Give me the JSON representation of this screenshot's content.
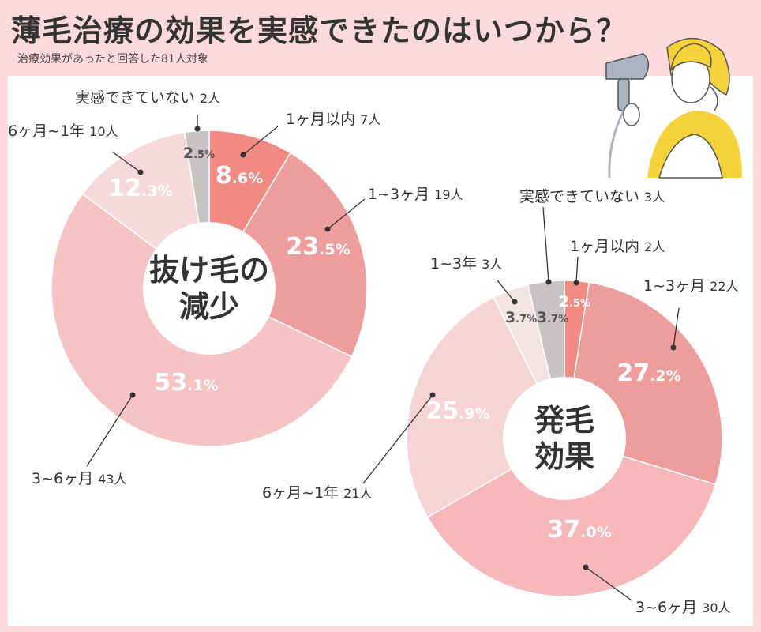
{
  "title": "薄毛治療の効果を実感できたのはいつから？",
  "subtitle": "治療効果があったと回答した81人対象",
  "colors": {
    "background": "#fcd9dc",
    "slices": [
      "#f28a84",
      "#ee9d9d",
      "#f6c3c3",
      "#f6dadb",
      "#f2e4e4",
      "#c9c4c4"
    ]
  },
  "chart_data": [
    {
      "type": "pie",
      "center_label_lines": [
        "抜け毛の",
        "減少"
      ],
      "slices": [
        {
          "label": "1ヶ月以内",
          "count_text": "7人",
          "count": 7,
          "value": 8.6,
          "int": "8",
          "dec": ".6%",
          "color": "#f28a84"
        },
        {
          "label": "1~3ヶ月",
          "count_text": "19人",
          "count": 19,
          "value": 23.5,
          "int": "23",
          "dec": ".5%",
          "color": "#ee9d9d"
        },
        {
          "label": "3~6ヶ月",
          "count_text": "43人",
          "count": 43,
          "value": 53.1,
          "int": "53",
          "dec": ".1%",
          "color": "#f6c3c3"
        },
        {
          "label": "6ヶ月~1年",
          "count_text": "10人",
          "count": 10,
          "value": 12.3,
          "int": "12",
          "dec": ".3%",
          "color": "#f6dadb"
        },
        {
          "label": "実感できていない",
          "count_text": "2人",
          "count": 2,
          "value": 2.5,
          "int": "2",
          "dec": ".5%",
          "color": "#c9c4c4"
        }
      ]
    },
    {
      "type": "pie",
      "center_label_lines": [
        "発毛",
        "効果"
      ],
      "slices": [
        {
          "label": "1ヶ月以内",
          "count_text": "2人",
          "count": 2,
          "value": 2.5,
          "int": "2",
          "dec": ".5%",
          "color": "#f28a84"
        },
        {
          "label": "1~3ヶ月",
          "count_text": "22人",
          "count": 22,
          "value": 27.2,
          "int": "27",
          "dec": ".2%",
          "color": "#ee9d9d"
        },
        {
          "label": "3~6ヶ月",
          "count_text": "30人",
          "count": 30,
          "value": 37.0,
          "int": "37",
          "dec": ".0%",
          "color": "#f6b8b8"
        },
        {
          "label": "6ヶ月~1年",
          "count_text": "21人",
          "count": 21,
          "value": 25.9,
          "int": "25",
          "dec": ".9%",
          "color": "#f6d3d4"
        },
        {
          "label": "1~3年",
          "count_text": "3人",
          "count": 3,
          "value": 3.7,
          "int": "3",
          "dec": ".7%",
          "color": "#f2e4e4"
        },
        {
          "label": "実感できていない",
          "count_text": "3人",
          "count": 3,
          "value": 3.7,
          "int": "3",
          "dec": ".7%",
          "color": "#c9c4c4"
        }
      ]
    }
  ]
}
